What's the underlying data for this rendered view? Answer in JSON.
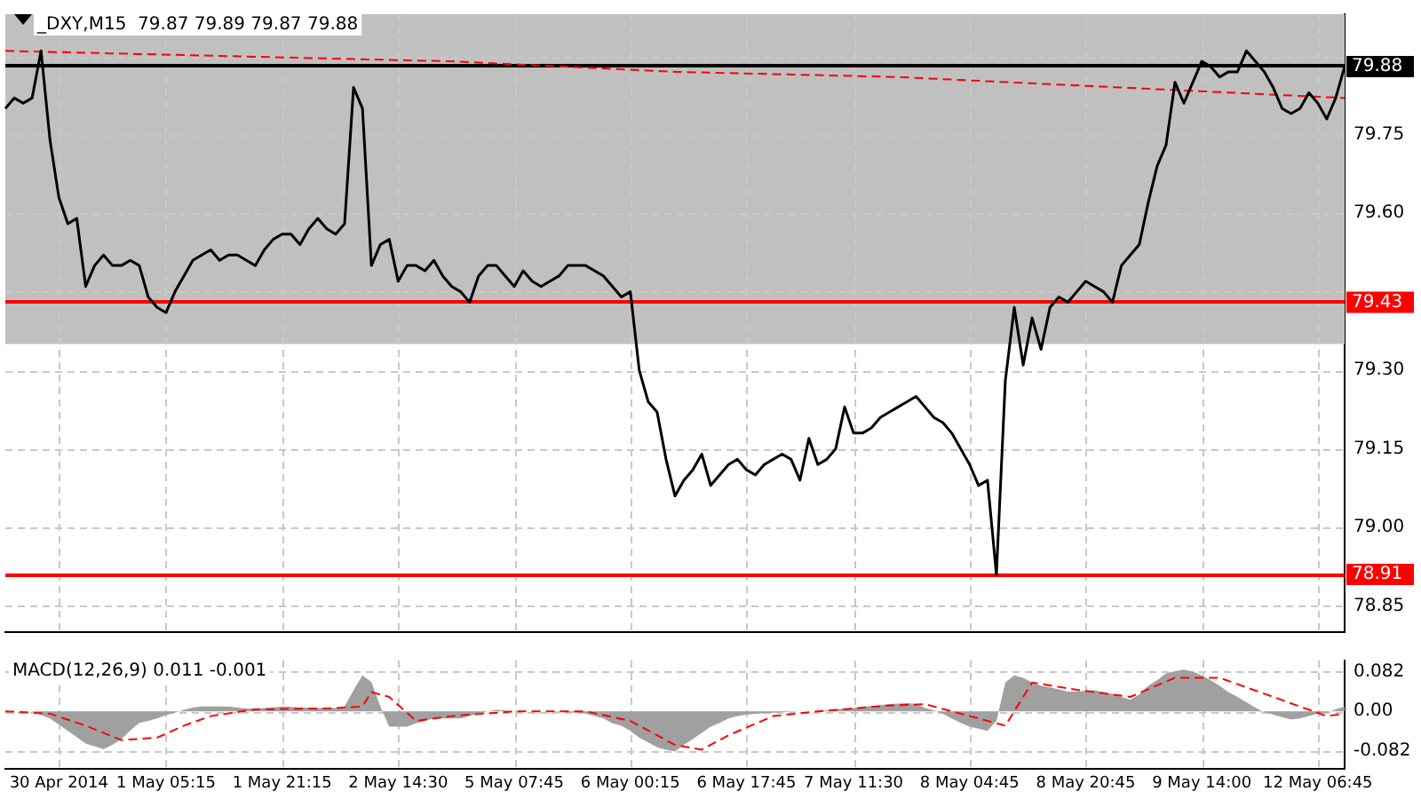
{
  "chart_data": [
    {
      "type": "line",
      "title": "_DXY,M15  79.87 79.89 79.87 79.88",
      "categories": [
        null,
        null,
        null,
        null,
        null,
        null,
        null,
        null,
        null,
        null,
        null,
        null,
        null,
        null,
        null,
        null,
        null,
        null,
        null,
        null,
        null,
        null,
        null,
        null,
        null,
        null,
        null,
        null,
        null,
        null,
        null,
        null,
        null,
        null,
        null,
        null,
        null,
        null,
        null,
        null,
        null,
        null,
        null,
        null,
        null,
        null,
        null,
        null,
        null,
        null,
        null,
        null,
        null,
        null,
        null,
        null,
        null,
        null,
        null,
        null,
        null,
        null,
        null,
        null,
        null,
        null,
        null,
        null,
        null,
        null,
        null,
        null,
        null,
        null,
        null,
        null,
        null,
        null,
        null,
        null,
        null,
        null,
        null,
        null,
        null,
        null,
        null,
        null,
        null,
        null,
        null,
        null,
        null,
        null,
        null,
        null,
        null,
        null,
        null,
        null,
        null,
        null,
        null,
        null,
        null,
        null,
        null,
        null,
        null,
        null,
        null,
        null,
        null,
        null,
        null,
        null,
        null,
        null,
        null,
        null,
        null,
        null,
        null,
        null,
        null,
        null,
        null,
        null,
        null,
        null,
        null,
        null,
        null,
        null,
        null,
        null,
        null,
        null,
        null,
        null,
        null,
        null,
        null,
        null,
        null,
        null,
        null,
        null,
        null,
        null,
        null
      ],
      "ylim": [
        78.8,
        79.98
      ],
      "yticks": [
        {
          "value": 78.85,
          "label": "78.85"
        },
        {
          "value": 79,
          "label": "79.00"
        },
        {
          "value": 79.15,
          "label": "79.15"
        },
        {
          "value": 79.3,
          "label": "79.30"
        },
        {
          "value": 79.45,
          "label": null
        },
        {
          "value": 79.6,
          "label": "79.60"
        },
        {
          "value": 79.75,
          "label": "79.75"
        },
        {
          "value": 79.9,
          "label": null
        }
      ],
      "tick_labels": "y",
      "grid": true,
      "marker": "none",
      "bands": [
        {
          "axis": "y",
          "from": 79.35,
          "to": 79.98,
          "color": "#c0c0c0"
        }
      ],
      "ref_lines": [
        {
          "axis": "y",
          "value": 79.43,
          "label": "79.43",
          "color": "#ff0000"
        },
        {
          "axis": "y",
          "value": 78.91,
          "label": "78.91",
          "color": "#ff0000"
        },
        {
          "axis": "y",
          "value": 79.88,
          "label": "79.88",
          "color": "#000000"
        }
      ],
      "series": [
        {
          "type": "line",
          "color": "#000000",
          "line_style": "solid",
          "values": [
            79.8,
            79.82,
            79.81,
            79.82,
            79.91,
            79.74,
            79.63,
            79.58,
            79.59,
            79.46,
            79.5,
            79.52,
            79.5,
            79.5,
            79.51,
            79.5,
            79.44,
            79.42,
            79.41,
            79.45,
            79.48,
            79.51,
            79.52,
            79.53,
            79.51,
            79.52,
            79.52,
            79.51,
            79.5,
            79.53,
            79.55,
            79.56,
            79.56,
            79.54,
            79.57,
            79.59,
            79.57,
            79.56,
            79.58,
            79.84,
            79.8,
            79.5,
            79.54,
            79.55,
            79.47,
            79.5,
            79.5,
            79.49,
            79.51,
            79.48,
            79.46,
            79.45,
            79.43,
            79.48,
            79.5,
            79.5,
            79.48,
            79.46,
            79.49,
            79.47,
            79.46,
            79.47,
            79.48,
            79.5,
            79.5,
            79.5,
            79.49,
            79.48,
            79.46,
            79.44,
            79.45,
            79.3,
            79.24,
            79.22,
            79.13,
            79.06,
            79.09,
            79.11,
            79.14,
            79.08,
            79.1,
            79.12,
            79.13,
            79.11,
            79.1,
            79.12,
            79.13,
            79.14,
            79.13,
            79.09,
            79.17,
            79.12,
            79.13,
            79.15,
            79.23,
            79.18,
            79.18,
            79.19,
            79.21,
            79.22,
            79.23,
            79.24,
            79.25,
            79.23,
            79.21,
            79.2,
            79.18,
            79.15,
            79.12,
            79.08,
            79.09,
            78.91,
            79.28,
            79.42,
            79.31,
            79.4,
            79.34,
            79.42,
            79.44,
            79.43,
            79.45,
            79.47,
            79.46,
            79.45,
            79.43,
            79.5,
            79.52,
            79.54,
            79.62,
            79.69,
            79.73,
            79.85,
            79.81,
            79.85,
            79.89,
            79.88,
            79.86,
            79.87,
            79.87,
            79.91,
            79.89,
            79.87,
            79.84,
            79.8,
            79.79,
            79.8,
            79.83,
            79.81,
            79.78,
            79.82,
            79.88
          ]
        },
        {
          "type": "line",
          "color": "#ff0000",
          "line_style": "dashed",
          "values": [
            79.91,
            null,
            null,
            null,
            null,
            null,
            null,
            null,
            null,
            null,
            null,
            null,
            null,
            null,
            null,
            null,
            null,
            null,
            null,
            null,
            null,
            null,
            null,
            null,
            null,
            79.9,
            null,
            null,
            null,
            null,
            null,
            null,
            null,
            null,
            null,
            null,
            null,
            null,
            null,
            null,
            null,
            null,
            null,
            null,
            null,
            null,
            null,
            null,
            null,
            null,
            79.89,
            null,
            null,
            null,
            null,
            null,
            null,
            null,
            null,
            null,
            null,
            null,
            null,
            null,
            null,
            null,
            null,
            null,
            null,
            null,
            null,
            null,
            null,
            null,
            null,
            79.87,
            null,
            null,
            null,
            null,
            null,
            null,
            null,
            null,
            null,
            null,
            null,
            null,
            null,
            null,
            null,
            null,
            null,
            null,
            null,
            null,
            null,
            null,
            null,
            null,
            79.86,
            null,
            null,
            null,
            null,
            null,
            null,
            null,
            null,
            null,
            null,
            null,
            null,
            null,
            null,
            null,
            null,
            null,
            null,
            null,
            null,
            null,
            null,
            null,
            null,
            79.84,
            null,
            null,
            null,
            null,
            null,
            null,
            null,
            null,
            null,
            null,
            null,
            null,
            null,
            null,
            null,
            null,
            null,
            null,
            null,
            null,
            null,
            null,
            null,
            null,
            79.82
          ]
        }
      ]
    },
    {
      "type": "line",
      "title": "MACD(12,26,9) 0.011 -0.001",
      "categories": [
        null,
        null,
        null,
        null,
        null,
        null,
        "30 Apr 2014",
        null,
        null,
        null,
        null,
        null,
        null,
        null,
        null,
        null,
        null,
        null,
        "1 May 05:15",
        null,
        null,
        null,
        null,
        null,
        null,
        null,
        null,
        null,
        null,
        null,
        null,
        "1 May 21:15",
        null,
        null,
        null,
        null,
        null,
        null,
        null,
        null,
        null,
        null,
        null,
        null,
        "2 May 14:30",
        null,
        null,
        null,
        null,
        null,
        null,
        null,
        null,
        null,
        null,
        null,
        null,
        "5 May 07:45",
        null,
        null,
        null,
        null,
        null,
        null,
        null,
        null,
        null,
        null,
        null,
        null,
        "6 May 00:15",
        null,
        null,
        null,
        null,
        null,
        null,
        null,
        null,
        null,
        null,
        null,
        null,
        "6 May 17:45",
        null,
        null,
        null,
        null,
        null,
        null,
        null,
        null,
        null,
        null,
        null,
        "7 May 11:30",
        null,
        null,
        null,
        null,
        null,
        null,
        null,
        null,
        null,
        null,
        null,
        null,
        "8 May 04:45",
        null,
        null,
        null,
        null,
        null,
        null,
        null,
        null,
        null,
        null,
        null,
        null,
        "8 May 20:45",
        null,
        null,
        null,
        null,
        null,
        null,
        null,
        null,
        null,
        null,
        null,
        null,
        "9 May 14:00",
        null,
        null,
        null,
        null,
        null,
        null,
        null,
        null,
        null,
        null,
        null,
        null,
        "12 May 06:45",
        null,
        null,
        null
      ],
      "ylim": [
        -0.12,
        0.106
      ],
      "yticks": [
        {
          "value": -0.082,
          "label": "-0.082"
        },
        {
          "value": 0,
          "label": "0.00"
        },
        {
          "value": 0.082,
          "label": "0.082"
        }
      ],
      "grid": true,
      "marker": "none",
      "series": [
        {
          "type": "area",
          "color": "#a0a0a0",
          "values": [
            0,
            0,
            0,
            0,
            -0.008,
            -0.015,
            -0.028,
            -0.041,
            -0.054,
            -0.067,
            -0.073,
            -0.079,
            -0.07,
            -0.058,
            -0.04,
            -0.024,
            -0.02,
            -0.015,
            -0.008,
            -0.003,
            0.003,
            0.008,
            0.01,
            0.01,
            0.01,
            0.01,
            0.008,
            0.006,
            0.005,
            0.007,
            0.008,
            0.01,
            0.009,
            0.008,
            0.008,
            0.007,
            0.007,
            0.007,
            0.01,
            0.044,
            0.075,
            0.061,
            0.01,
            -0.032,
            -0.032,
            -0.032,
            -0.025,
            -0.02,
            -0.015,
            -0.015,
            -0.015,
            -0.015,
            -0.01,
            -0.005,
            0,
            0.003,
            0.002,
            0,
            0,
            0,
            0,
            0,
            -0.001,
            -0.002,
            -0.003,
            -0.005,
            -0.01,
            -0.015,
            -0.025,
            -0.03,
            -0.041,
            -0.055,
            -0.065,
            -0.075,
            -0.08,
            -0.084,
            -0.07,
            -0.058,
            -0.045,
            -0.032,
            -0.024,
            -0.015,
            -0.01,
            -0.007,
            -0.005,
            -0.004,
            -0.003,
            -0.002,
            -0.001,
            0,
            0,
            0,
            0.002,
            0.004,
            0.006,
            0.007,
            0.009,
            0.011,
            0.013,
            0.015,
            0.016,
            0.017,
            0.015,
            0.007,
            0.002,
            -0.005,
            -0.015,
            -0.024,
            -0.032,
            -0.036,
            -0.041,
            -0.02,
            0.06,
            0.075,
            0.07,
            0.06,
            0.053,
            0.05,
            0.046,
            0.041,
            0.041,
            0.043,
            0.044,
            0.04,
            0.036,
            0.03,
            0.024,
            0.035,
            0.053,
            0.065,
            0.079,
            0.084,
            0.087,
            0.083,
            0.075,
            0.065,
            0.053,
            0.04,
            0.03,
            0.019,
            0.008,
            -0.002,
            -0.007,
            -0.012,
            -0.017,
            -0.015,
            -0.01,
            -0.005,
            -0.003,
            0.004,
            0.01
          ]
        },
        {
          "type": "line",
          "color": "#ff0000",
          "line_style": "dashed",
          "values": [
            0,
            null,
            null,
            null,
            null,
            -0.005,
            null,
            null,
            null,
            -0.03,
            null,
            null,
            null,
            -0.06,
            null,
            null,
            null,
            -0.055,
            null,
            null,
            -0.03,
            null,
            null,
            -0.01,
            null,
            null,
            null,
            null,
            0.004,
            null,
            null,
            null,
            null,
            null,
            null,
            null,
            0.006,
            null,
            null,
            null,
            0.01,
            0.04,
            null,
            0.03,
            null,
            null,
            -0.02,
            null,
            null,
            null,
            -0.01,
            null,
            null,
            null,
            null,
            null,
            null,
            0,
            null,
            null,
            null,
            null,
            null,
            null,
            null,
            0,
            null,
            null,
            null,
            null,
            -0.02,
            null,
            null,
            null,
            null,
            -0.07,
            null,
            null,
            -0.08,
            null,
            null,
            -0.05,
            null,
            null,
            null,
            null,
            -0.01,
            null,
            null,
            null,
            null,
            0,
            null,
            null,
            null,
            null,
            null,
            null,
            null,
            0.012,
            null,
            null,
            null,
            0.015,
            null,
            null,
            null,
            null,
            -0.01,
            null,
            null,
            null,
            -0.03,
            null,
            null,
            0.06,
            null,
            null,
            null,
            null,
            0.045,
            null,
            null,
            null,
            null,
            null,
            0.03,
            null,
            null,
            null,
            null,
            0.07,
            null,
            null,
            null,
            null,
            0.07,
            null,
            null,
            null,
            null,
            null,
            0.03,
            null,
            null,
            null,
            null,
            null,
            -0.01,
            null,
            -0.005
          ]
        }
      ]
    }
  ]
}
